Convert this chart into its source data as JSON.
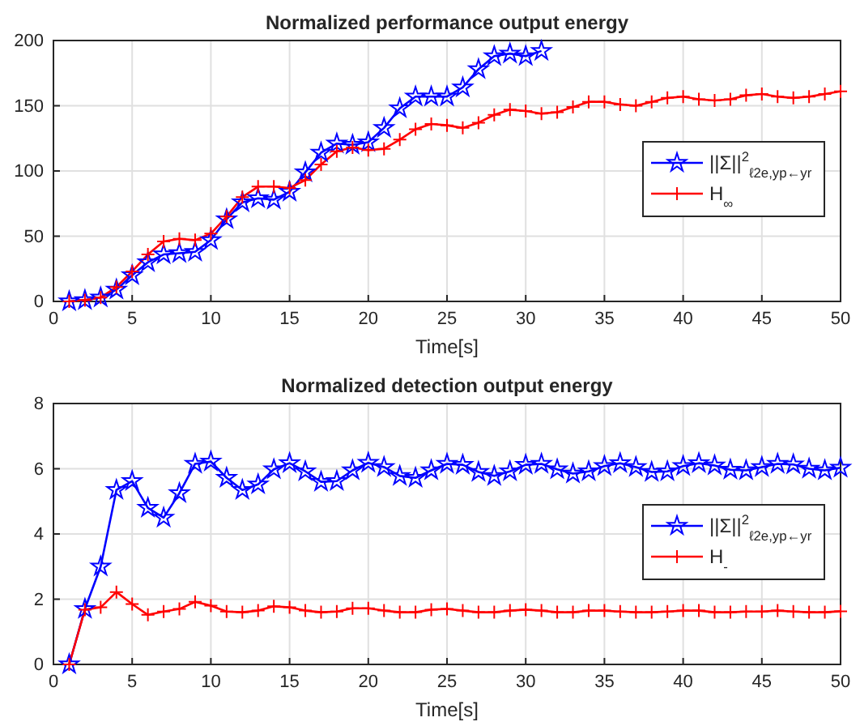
{
  "chart_data": [
    {
      "type": "line",
      "title": "Normalized performance output energy",
      "xlabel": "Time[s]",
      "xlim": [
        0,
        50
      ],
      "xticks": [
        0,
        5,
        10,
        15,
        20,
        25,
        30,
        35,
        40,
        45,
        50
      ],
      "ylim": [
        0,
        200
      ],
      "yticks": [
        0,
        50,
        100,
        150,
        200
      ],
      "grid": true,
      "legend": "right",
      "x": [
        1,
        2,
        3,
        4,
        5,
        6,
        7,
        8,
        9,
        10,
        11,
        12,
        13,
        14,
        15,
        16,
        17,
        18,
        19,
        20,
        21,
        22,
        23,
        24,
        25,
        26,
        27,
        28,
        29,
        30,
        31,
        32,
        33,
        34,
        35,
        36,
        37,
        38,
        39,
        40,
        41,
        42,
        43,
        44,
        45,
        46,
        47,
        48,
        49,
        50
      ],
      "series": [
        {
          "name": "||Σ||$^{2}$$_{ℓ2e,yp←yr}$",
          "color": "#0000ff",
          "marker": "star",
          "values": [
            0,
            1,
            3,
            9,
            20,
            30,
            36,
            37,
            38,
            47,
            63,
            76,
            79,
            78,
            84,
            99,
            114,
            121,
            120,
            122,
            133,
            148,
            157,
            157,
            157,
            164,
            178,
            188,
            190,
            188,
            192,
            null,
            null,
            null,
            null,
            null,
            null,
            null,
            null,
            null,
            null,
            null,
            null,
            null,
            null,
            null,
            null,
            null,
            null,
            null
          ]
        },
        {
          "name": "H$_{∞}$",
          "color": "#ff0000",
          "marker": "cross",
          "values": [
            0,
            1,
            3,
            11,
            23,
            36,
            46,
            48,
            47,
            52,
            65,
            80,
            88,
            88,
            87,
            93,
            105,
            115,
            118,
            116,
            117,
            124,
            132,
            136,
            135,
            133,
            137,
            143,
            147,
            146,
            144,
            145,
            149,
            153,
            153,
            151,
            150,
            153,
            156,
            157,
            155,
            154,
            155,
            158,
            159,
            157,
            156,
            157,
            159,
            161
          ]
        }
      ]
    },
    {
      "type": "line",
      "title": "Normalized detection output energy",
      "xlabel": "Time[s]",
      "xlim": [
        0,
        50
      ],
      "xticks": [
        0,
        5,
        10,
        15,
        20,
        25,
        30,
        35,
        40,
        45,
        50
      ],
      "ylim": [
        0,
        8
      ],
      "yticks": [
        0,
        2,
        4,
        6,
        8
      ],
      "grid": true,
      "legend": "right",
      "x": [
        1,
        2,
        3,
        4,
        5,
        6,
        7,
        8,
        9,
        10,
        11,
        12,
        13,
        14,
        15,
        16,
        17,
        18,
        19,
        20,
        21,
        22,
        23,
        24,
        25,
        26,
        27,
        28,
        29,
        30,
        31,
        32,
        33,
        34,
        35,
        36,
        37,
        38,
        39,
        40,
        41,
        42,
        43,
        44,
        45,
        46,
        47,
        48,
        49,
        50
      ],
      "series": [
        {
          "name": "||Σ||$^{2}$$_{ℓ2e,yp←yr}$",
          "color": "#0000ff",
          "marker": "star",
          "values": [
            0,
            1.7,
            3.0,
            5.35,
            5.62,
            4.8,
            4.5,
            5.25,
            6.15,
            6.22,
            5.72,
            5.35,
            5.52,
            5.98,
            6.17,
            5.92,
            5.6,
            5.62,
            5.95,
            6.18,
            6.05,
            5.78,
            5.72,
            5.95,
            6.15,
            6.12,
            5.9,
            5.78,
            5.92,
            6.12,
            6.15,
            5.98,
            5.85,
            5.92,
            6.08,
            6.17,
            6.05,
            5.9,
            5.92,
            6.08,
            6.17,
            6.1,
            5.97,
            5.95,
            6.05,
            6.15,
            6.13,
            6.0,
            5.95,
            6.03
          ]
        },
        {
          "name": "H$_{-}$",
          "color": "#ff0000",
          "marker": "cross",
          "values": [
            0,
            1.68,
            1.75,
            2.22,
            1.85,
            1.52,
            1.62,
            1.7,
            1.92,
            1.8,
            1.62,
            1.6,
            1.65,
            1.78,
            1.75,
            1.65,
            1.6,
            1.62,
            1.72,
            1.72,
            1.65,
            1.6,
            1.6,
            1.68,
            1.7,
            1.65,
            1.6,
            1.6,
            1.65,
            1.68,
            1.65,
            1.6,
            1.6,
            1.65,
            1.65,
            1.62,
            1.6,
            1.6,
            1.62,
            1.65,
            1.65,
            1.6,
            1.6,
            1.62,
            1.62,
            1.65,
            1.62,
            1.6,
            1.6,
            1.63
          ]
        }
      ]
    }
  ]
}
